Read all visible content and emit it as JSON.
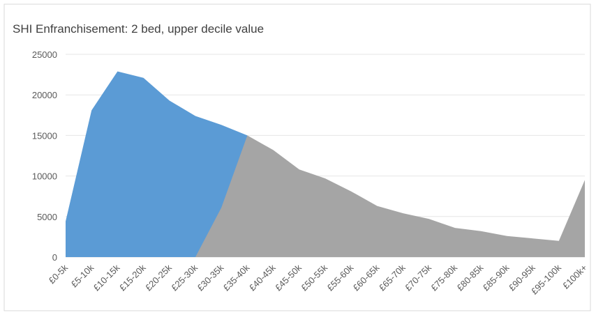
{
  "chart_data": {
    "type": "area",
    "title": "SHI Enfranchisement: 2 bed, upper decile value",
    "categories": [
      "£0-5k",
      "£5-10k",
      "£10-15k",
      "£15-20k",
      "£20-25k",
      "£25-30k",
      "£30-35k",
      "£35-40k",
      "£40-45k",
      "£45-50k",
      "£50-55k",
      "£55-60k",
      "£60-65k",
      "£65-70k",
      "£70-75k",
      "£75-80k",
      "£80-85k",
      "£85-90k",
      "£90-95k",
      "£95-100k",
      "£100k+"
    ],
    "series": [
      {
        "color": "#5b9bd5",
        "values": [
          4400,
          18100,
          22900,
          22100,
          19300,
          17400,
          16300,
          15000,
          null,
          null,
          null,
          null,
          null,
          null,
          null,
          null,
          null,
          null,
          null,
          null,
          null
        ]
      },
      {
        "color": "#a5a5a5",
        "values": [
          null,
          null,
          null,
          null,
          null,
          0,
          6100,
          15000,
          13200,
          10800,
          9700,
          8100,
          6300,
          5400,
          4700,
          3600,
          3200,
          2600,
          2300,
          2000,
          9500
        ]
      }
    ],
    "ylim": [
      0,
      25000
    ],
    "yticks": [
      0,
      5000,
      10000,
      15000,
      20000,
      25000
    ],
    "grid": true
  }
}
